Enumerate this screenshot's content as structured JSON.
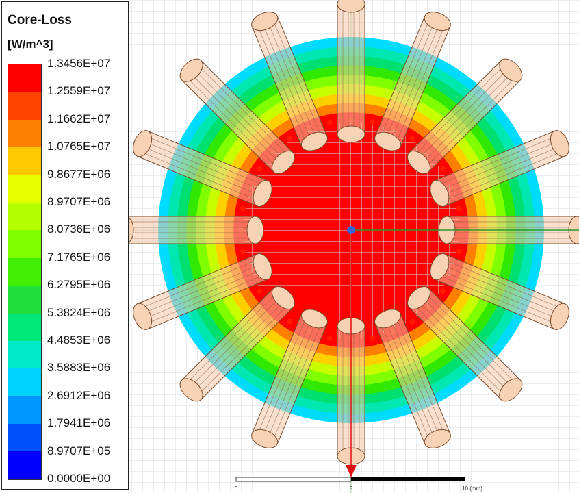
{
  "legend": {
    "title": "Core-Loss",
    "unit": "[W/m^3]",
    "values": [
      "1.3456E+07",
      "1.2559E+07",
      "1.1662E+07",
      "1.0765E+07",
      "9.8677E+06",
      "8.9707E+06",
      "8.0736E+06",
      "7.1765E+06",
      "6.2795E+06",
      "5.3824E+06",
      "4.4853E+06",
      "3.5883E+06",
      "2.6912E+06",
      "1.7941E+06",
      "8.9707E+05",
      "0.0000E+00"
    ],
    "colors": [
      "#ff0000",
      "#ff4400",
      "#ff8000",
      "#ffc800",
      "#e8ff00",
      "#b4ff00",
      "#80ff00",
      "#40f000",
      "#20e040",
      "#00e87a",
      "#00ecc8",
      "#00d2ff",
      "#0096ff",
      "#0050ff",
      "#0000ff"
    ]
  },
  "scale_bar": {
    "ticks": [
      "0",
      "5",
      "10 (mm)"
    ]
  },
  "model": {
    "coil_count": 16,
    "field_colors": [
      "#ff0000",
      "#ff8000",
      "#ffd000",
      "#c8ff00",
      "#80ff00",
      "#30e800",
      "#00e070",
      "#00e8b0",
      "#00dcff"
    ]
  }
}
